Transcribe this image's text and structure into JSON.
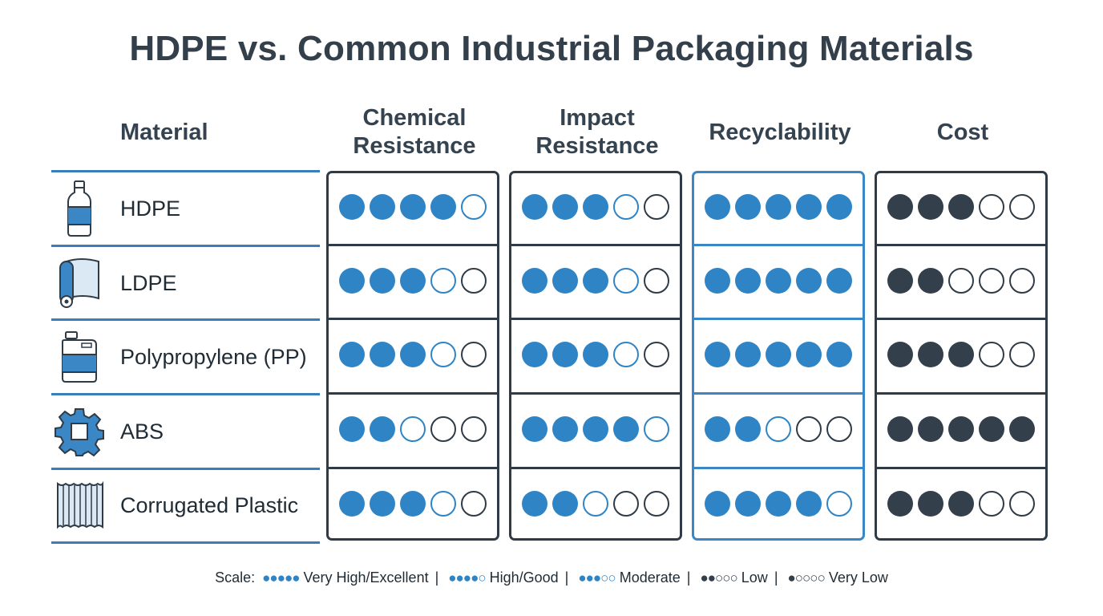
{
  "title": "HDPE vs. Common Industrial Packaging Materials",
  "headers": {
    "material": "Material",
    "chemical_line1": "Chemical",
    "chemical_line2": "Resistance",
    "impact_line1": "Impact",
    "impact_line2": "Resistance",
    "recyclability": "Recyclability",
    "cost": "Cost"
  },
  "materials": [
    {
      "label": "HDPE",
      "icon": "bottle-icon"
    },
    {
      "label": "LDPE",
      "icon": "film-roll-icon"
    },
    {
      "label": "Polypropylene (PP)",
      "icon": "jerrycan-icon"
    },
    {
      "label": "ABS",
      "icon": "gear-icon"
    },
    {
      "label": "Corrugated Plastic",
      "icon": "corrugated-sheet-icon"
    }
  ],
  "chart_data": {
    "type": "table",
    "title": "HDPE vs. Common Industrial Packaging Materials",
    "scale_max": 5,
    "columns": [
      "Chemical Resistance",
      "Impact Resistance",
      "Recyclability",
      "Cost"
    ],
    "rows": [
      "HDPE",
      "LDPE",
      "Polypropylene (PP)",
      "ABS",
      "Corrugated Plastic"
    ],
    "values": [
      [
        4,
        3,
        5,
        3
      ],
      [
        3,
        3,
        5,
        2
      ],
      [
        3,
        3,
        5,
        3
      ],
      [
        2,
        4,
        2,
        5
      ],
      [
        3,
        2,
        4,
        3
      ]
    ],
    "column_colors": [
      "#2f84c6",
      "#2f84c6",
      "#2f84c6",
      "#333f4a"
    ]
  },
  "legend": {
    "prefix": "Scale:",
    "items": [
      {
        "filled": 5,
        "label": "Very High/Excellent",
        "color": "#2f84c6"
      },
      {
        "filled": 4,
        "label": "High/Good",
        "color": "#2f84c6"
      },
      {
        "filled": 3,
        "label": "Moderate",
        "color": "#2f84c6"
      },
      {
        "filled": 2,
        "label": "Low",
        "color": "#333f4a"
      },
      {
        "filled": 1,
        "label": "Very Low",
        "color": "#333f4a"
      }
    ],
    "separator": "|"
  }
}
